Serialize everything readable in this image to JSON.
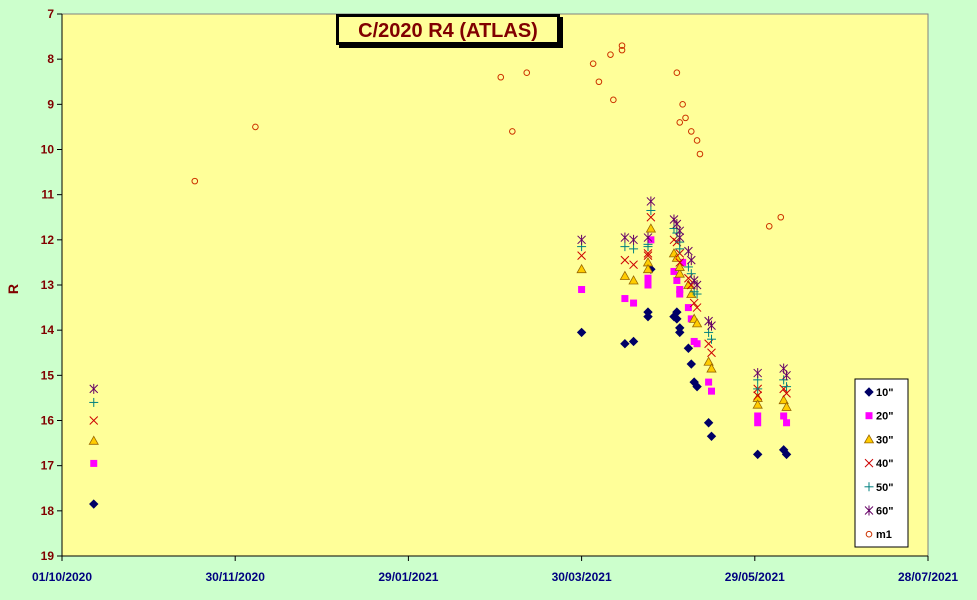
{
  "chart_data": {
    "type": "scatter",
    "title": "C/2020 R4 (ATLAS)",
    "ylabel": "R",
    "xlabel": "",
    "x_axis": {
      "type": "date",
      "range": [
        "2020-10-01",
        "2021-07-28"
      ],
      "tick_labels": [
        "01/10/2020",
        "30/11/2020",
        "29/01/2021",
        "30/03/2021",
        "29/05/2021",
        "28/07/2021"
      ],
      "tick_dates": [
        "2020-10-01",
        "2020-11-30",
        "2021-01-29",
        "2021-03-30",
        "2021-05-29",
        "2021-07-28"
      ]
    },
    "y_axis": {
      "range": [
        7,
        19
      ],
      "reversed": true,
      "tick_labels": [
        "7",
        "8",
        "9",
        "10",
        "11",
        "12",
        "13",
        "14",
        "15",
        "16",
        "17",
        "18",
        "19"
      ]
    },
    "plot_background": "#ffff99",
    "page_background": "#ccffcc",
    "grid": false,
    "legend_position": "bottom-right",
    "series": [
      {
        "name": "10\"",
        "marker": "diamond",
        "color": "#000066",
        "points": [
          [
            "2020-10-12",
            17.85
          ],
          [
            "2021-03-30",
            14.05
          ],
          [
            "2021-04-14",
            14.3
          ],
          [
            "2021-04-17",
            14.25
          ],
          [
            "2021-04-22",
            13.6
          ],
          [
            "2021-04-22",
            13.7
          ],
          [
            "2021-04-23",
            12.65
          ],
          [
            "2021-05-01",
            13.7
          ],
          [
            "2021-05-02",
            13.75
          ],
          [
            "2021-05-02",
            13.6
          ],
          [
            "2021-05-03",
            13.95
          ],
          [
            "2021-05-03",
            14.05
          ],
          [
            "2021-05-06",
            14.4
          ],
          [
            "2021-05-07",
            14.75
          ],
          [
            "2021-05-08",
            15.15
          ],
          [
            "2021-05-09",
            15.25
          ],
          [
            "2021-05-13",
            16.05
          ],
          [
            "2021-05-14",
            16.35
          ],
          [
            "2021-05-30",
            16.75
          ],
          [
            "2021-06-08",
            16.65
          ],
          [
            "2021-06-09",
            16.75
          ]
        ]
      },
      {
        "name": "20\"",
        "marker": "square",
        "color": "#ff00ff",
        "points": [
          [
            "2020-10-12",
            16.95
          ],
          [
            "2021-03-30",
            13.1
          ],
          [
            "2021-04-14",
            13.3
          ],
          [
            "2021-04-17",
            13.4
          ],
          [
            "2021-04-22",
            12.85
          ],
          [
            "2021-04-22",
            13.0
          ],
          [
            "2021-04-23",
            12.0
          ],
          [
            "2021-05-01",
            12.7
          ],
          [
            "2021-05-02",
            12.9
          ],
          [
            "2021-05-03",
            13.1
          ],
          [
            "2021-05-03",
            13.2
          ],
          [
            "2021-05-04",
            12.5
          ],
          [
            "2021-05-06",
            13.5
          ],
          [
            "2021-05-07",
            13.75
          ],
          [
            "2021-05-08",
            14.25
          ],
          [
            "2021-05-09",
            14.3
          ],
          [
            "2021-05-13",
            15.15
          ],
          [
            "2021-05-14",
            15.35
          ],
          [
            "2021-05-30",
            15.9
          ],
          [
            "2021-05-30",
            16.05
          ],
          [
            "2021-06-08",
            15.9
          ],
          [
            "2021-06-09",
            16.05
          ]
        ]
      },
      {
        "name": "30\"",
        "marker": "triangle",
        "color": "#ffcc00",
        "points": [
          [
            "2020-10-12",
            16.45
          ],
          [
            "2021-03-30",
            12.65
          ],
          [
            "2021-04-14",
            12.8
          ],
          [
            "2021-04-17",
            12.9
          ],
          [
            "2021-04-22",
            12.5
          ],
          [
            "2021-04-22",
            12.65
          ],
          [
            "2021-04-23",
            11.75
          ],
          [
            "2021-05-01",
            12.3
          ],
          [
            "2021-05-02",
            12.4
          ],
          [
            "2021-05-03",
            12.75
          ],
          [
            "2021-05-03",
            12.6
          ],
          [
            "2021-05-06",
            13.0
          ],
          [
            "2021-05-07",
            13.2
          ],
          [
            "2021-05-08",
            13.75
          ],
          [
            "2021-05-09",
            13.85
          ],
          [
            "2021-05-13",
            14.7
          ],
          [
            "2021-05-14",
            14.85
          ],
          [
            "2021-05-30",
            15.5
          ],
          [
            "2021-05-30",
            15.65
          ],
          [
            "2021-06-08",
            15.55
          ],
          [
            "2021-06-09",
            15.7
          ]
        ]
      },
      {
        "name": "40\"",
        "marker": "x",
        "color": "#cc0000",
        "points": [
          [
            "2020-10-12",
            16.0
          ],
          [
            "2021-03-30",
            12.35
          ],
          [
            "2021-04-14",
            12.45
          ],
          [
            "2021-04-17",
            12.55
          ],
          [
            "2021-04-22",
            12.3
          ],
          [
            "2021-04-22",
            12.35
          ],
          [
            "2021-04-23",
            11.5
          ],
          [
            "2021-05-01",
            12.0
          ],
          [
            "2021-05-02",
            12.05
          ],
          [
            "2021-05-03",
            12.5
          ],
          [
            "2021-05-03",
            12.3
          ],
          [
            "2021-05-06",
            12.85
          ],
          [
            "2021-05-07",
            13.0
          ],
          [
            "2021-05-08",
            13.4
          ],
          [
            "2021-05-09",
            13.5
          ],
          [
            "2021-05-13",
            14.3
          ],
          [
            "2021-05-14",
            14.5
          ],
          [
            "2021-05-30",
            15.3
          ],
          [
            "2021-05-30",
            15.45
          ],
          [
            "2021-06-08",
            15.3
          ],
          [
            "2021-06-09",
            15.4
          ]
        ]
      },
      {
        "name": "50\"",
        "marker": "plus",
        "color": "#008080",
        "points": [
          [
            "2020-10-12",
            15.6
          ],
          [
            "2021-03-30",
            12.15
          ],
          [
            "2021-04-14",
            12.15
          ],
          [
            "2021-04-17",
            12.2
          ],
          [
            "2021-04-22",
            12.1
          ],
          [
            "2021-04-22",
            12.15
          ],
          [
            "2021-04-23",
            11.35
          ],
          [
            "2021-05-01",
            11.75
          ],
          [
            "2021-05-02",
            11.85
          ],
          [
            "2021-05-03",
            12.2
          ],
          [
            "2021-05-03",
            12.05
          ],
          [
            "2021-05-06",
            12.6
          ],
          [
            "2021-05-07",
            12.75
          ],
          [
            "2021-05-08",
            13.15
          ],
          [
            "2021-05-09",
            13.2
          ],
          [
            "2021-05-13",
            14.05
          ],
          [
            "2021-05-14",
            14.2
          ],
          [
            "2021-05-30",
            15.1
          ],
          [
            "2021-05-30",
            15.3
          ],
          [
            "2021-06-08",
            15.1
          ],
          [
            "2021-06-09",
            15.25
          ]
        ]
      },
      {
        "name": "60\"",
        "marker": "asterisk",
        "color": "#660066",
        "points": [
          [
            "2020-10-12",
            15.3
          ],
          [
            "2021-03-30",
            12.0
          ],
          [
            "2021-04-14",
            11.95
          ],
          [
            "2021-04-17",
            12.0
          ],
          [
            "2021-04-22",
            11.95
          ],
          [
            "2021-04-23",
            11.15
          ],
          [
            "2021-05-01",
            11.55
          ],
          [
            "2021-05-02",
            11.65
          ],
          [
            "2021-05-03",
            11.95
          ],
          [
            "2021-05-03",
            11.8
          ],
          [
            "2021-05-06",
            12.25
          ],
          [
            "2021-05-07",
            12.45
          ],
          [
            "2021-05-08",
            12.9
          ],
          [
            "2021-05-09",
            13.0
          ],
          [
            "2021-05-13",
            13.8
          ],
          [
            "2021-05-14",
            13.9
          ],
          [
            "2021-05-30",
            14.95
          ],
          [
            "2021-06-08",
            14.85
          ],
          [
            "2021-06-09",
            15.0
          ]
        ]
      },
      {
        "name": "m1",
        "marker": "circle",
        "color": "#cc3300",
        "points": [
          [
            "2020-11-16",
            10.7
          ],
          [
            "2020-12-07",
            9.5
          ],
          [
            "2021-03-02",
            8.4
          ],
          [
            "2021-03-06",
            9.6
          ],
          [
            "2021-03-11",
            8.3
          ],
          [
            "2021-04-03",
            8.1
          ],
          [
            "2021-04-09",
            7.9
          ],
          [
            "2021-04-13",
            7.7
          ],
          [
            "2021-04-13",
            7.8
          ],
          [
            "2021-04-05",
            8.5
          ],
          [
            "2021-04-10",
            8.9
          ],
          [
            "2021-05-02",
            8.3
          ],
          [
            "2021-05-03",
            9.4
          ],
          [
            "2021-05-04",
            9.0
          ],
          [
            "2021-05-05",
            9.3
          ],
          [
            "2021-05-07",
            9.6
          ],
          [
            "2021-05-09",
            9.8
          ],
          [
            "2021-05-10",
            10.1
          ],
          [
            "2021-06-03",
            11.7
          ],
          [
            "2021-06-07",
            11.5
          ]
        ]
      }
    ]
  }
}
